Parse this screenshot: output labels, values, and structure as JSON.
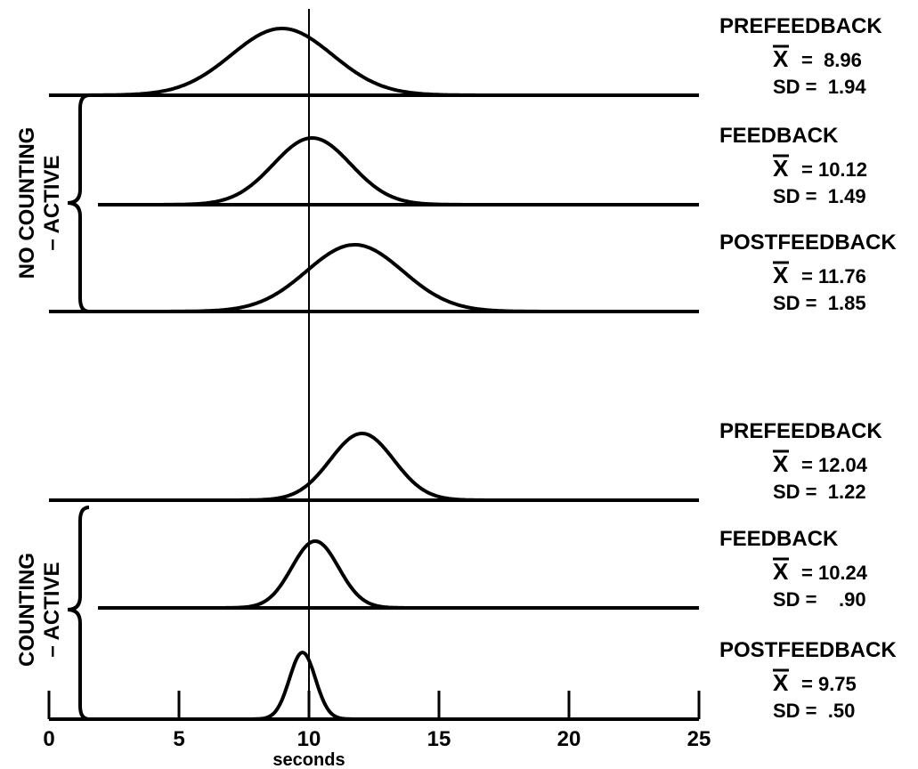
{
  "chart_data": {
    "type": "line",
    "xlabel": "seconds",
    "xlim": [
      0,
      25
    ],
    "x_ticks": [
      "0",
      "5",
      "10",
      "15",
      "20",
      "25"
    ],
    "reference_line_x": 10,
    "groups": [
      {
        "label_line1": "NO COUNTING",
        "label_line2": "– ACTIVE",
        "series": [
          {
            "name": "PREFEEDBACK",
            "mean": 8.96,
            "sd": 1.94,
            "mean_text": "=  8.96",
            "sd_text": "SD =  1.94"
          },
          {
            "name": "FEEDBACK",
            "mean": 10.12,
            "sd": 1.49,
            "mean_text": "= 10.12",
            "sd_text": "SD =  1.49"
          },
          {
            "name": "POSTFEEDBACK",
            "mean": 11.76,
            "sd": 1.85,
            "mean_text": "= 11.76",
            "sd_text": "SD =  1.85"
          }
        ]
      },
      {
        "label_line1": "COUNTING",
        "label_line2": "– ACTIVE",
        "series": [
          {
            "name": "PREFEEDBACK",
            "mean": 12.04,
            "sd": 1.22,
            "mean_text": "= 12.04",
            "sd_text": "SD =  1.22"
          },
          {
            "name": "FEEDBACK",
            "mean": 10.24,
            "sd": 0.9,
            "mean_text": "= 10.24",
            "sd_text": "SD =    .90"
          },
          {
            "name": "POSTFEEDBACK",
            "mean": 9.75,
            "sd": 0.5,
            "mean_text": "= 9.75",
            "sd_text": "SD =  .50"
          }
        ]
      }
    ]
  }
}
